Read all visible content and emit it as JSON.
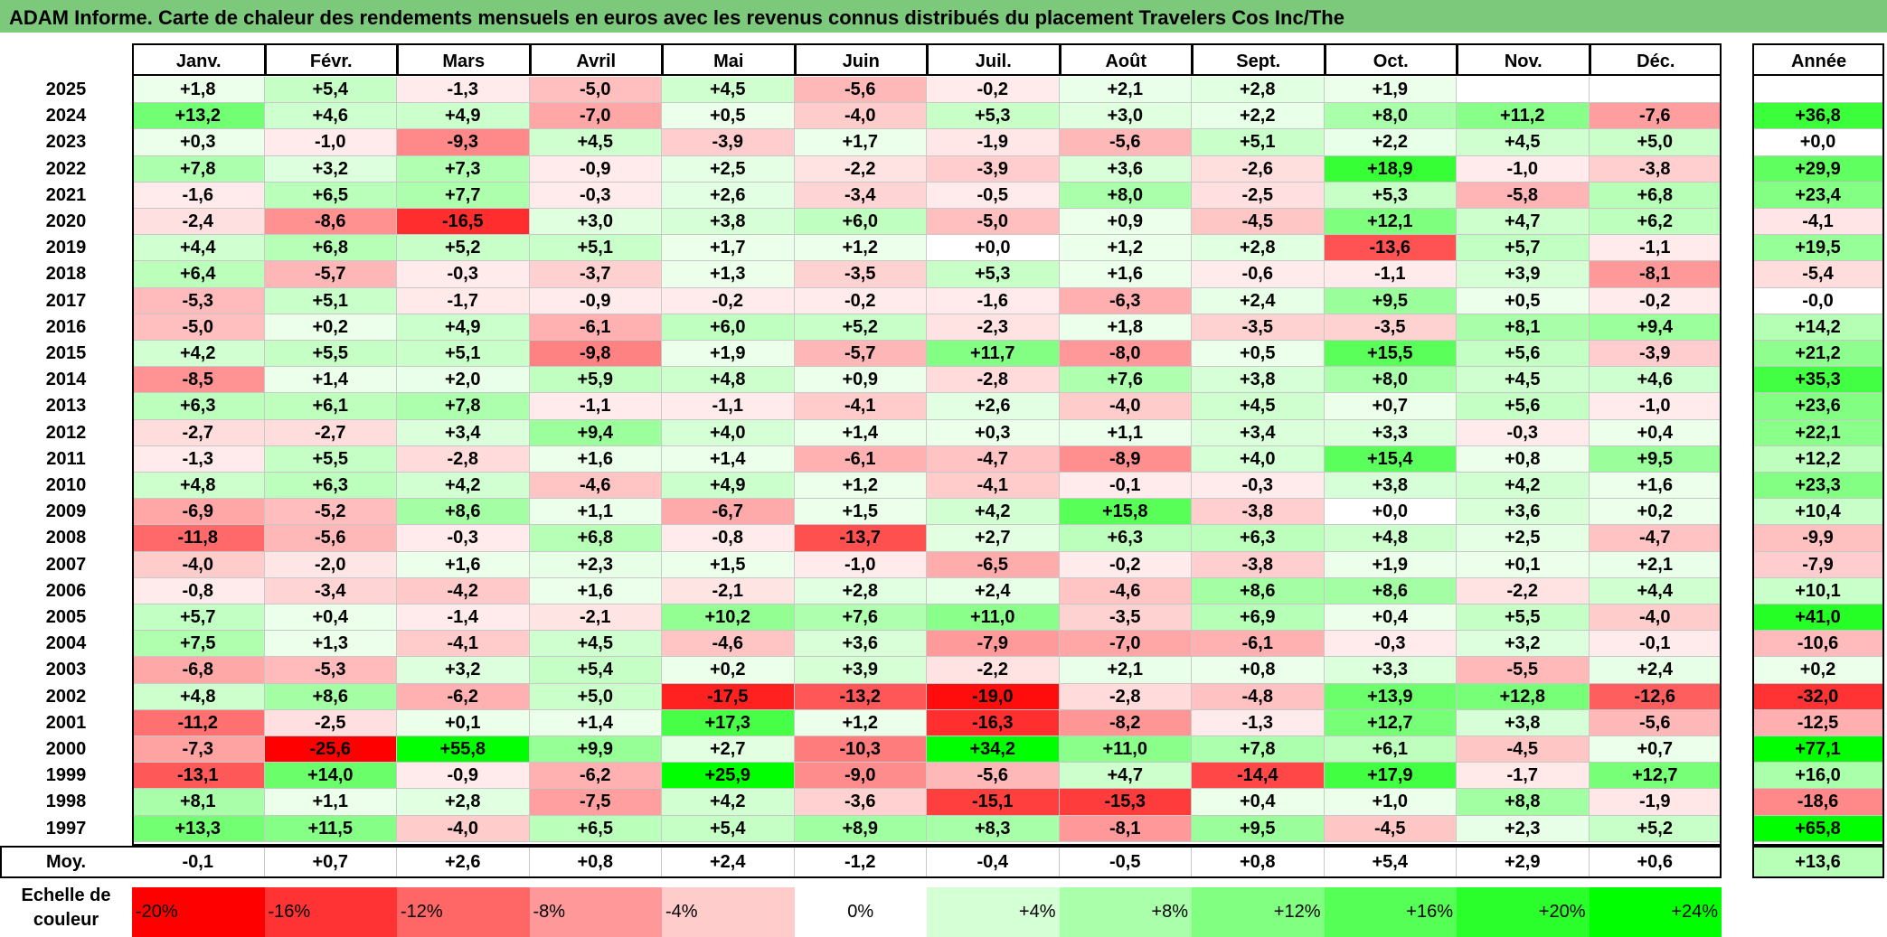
{
  "title": "ADAM Informe. Carte de chaleur des rendements mensuels en euros avec les revenus connus distribués du placement Travelers Cos Inc/The",
  "chart_data": {
    "type": "heatmap",
    "columns": [
      "Janv.",
      "Févr.",
      "Mars",
      "Avril",
      "Mai",
      "Juin",
      "Juil.",
      "Août",
      "Sept.",
      "Oct.",
      "Nov.",
      "Déc."
    ],
    "annual_header": "Année",
    "rows": [
      {
        "year": "2025",
        "values": [
          "+1,8",
          "+5,4",
          "-1,3",
          "-5,0",
          "+4,5",
          "-5,6",
          "-0,2",
          "+2,1",
          "+2,8",
          "+1,9",
          "",
          ""
        ],
        "annual": ""
      },
      {
        "year": "2024",
        "values": [
          "+13,2",
          "+4,6",
          "+4,9",
          "-7,0",
          "+0,5",
          "-4,0",
          "+5,3",
          "+3,0",
          "+2,2",
          "+8,0",
          "+11,2",
          "-7,6"
        ],
        "annual": "+36,8"
      },
      {
        "year": "2023",
        "values": [
          "+0,3",
          "-1,0",
          "-9,3",
          "+4,5",
          "-3,9",
          "+1,7",
          "-1,9",
          "-5,6",
          "+5,1",
          "+2,2",
          "+4,5",
          "+5,0"
        ],
        "annual": "+0,0"
      },
      {
        "year": "2022",
        "values": [
          "+7,8",
          "+3,2",
          "+7,3",
          "-0,9",
          "+2,5",
          "-2,2",
          "-3,9",
          "+3,6",
          "-2,6",
          "+18,9",
          "-1,0",
          "-3,8"
        ],
        "annual": "+29,9"
      },
      {
        "year": "2021",
        "values": [
          "-1,6",
          "+6,5",
          "+7,7",
          "-0,3",
          "+2,6",
          "-3,4",
          "-0,5",
          "+8,0",
          "-2,5",
          "+5,3",
          "-5,8",
          "+6,8"
        ],
        "annual": "+23,4"
      },
      {
        "year": "2020",
        "values": [
          "-2,4",
          "-8,6",
          "-16,5",
          "+3,0",
          "+3,8",
          "+6,0",
          "-5,0",
          "+0,9",
          "-4,5",
          "+12,1",
          "+4,7",
          "+6,2"
        ],
        "annual": "-4,1"
      },
      {
        "year": "2019",
        "values": [
          "+4,4",
          "+6,8",
          "+5,2",
          "+5,1",
          "+1,7",
          "+1,2",
          "+0,0",
          "+1,2",
          "+2,8",
          "-13,6",
          "+5,7",
          "-1,1"
        ],
        "annual": "+19,5"
      },
      {
        "year": "2018",
        "values": [
          "+6,4",
          "-5,7",
          "-0,3",
          "-3,7",
          "+1,3",
          "-3,5",
          "+5,3",
          "+1,6",
          "-0,6",
          "-1,1",
          "+3,9",
          "-8,1"
        ],
        "annual": "-5,4"
      },
      {
        "year": "2017",
        "values": [
          "-5,3",
          "+5,1",
          "-1,7",
          "-0,9",
          "-0,2",
          "-0,2",
          "-1,6",
          "-6,3",
          "+2,4",
          "+9,5",
          "+0,5",
          "-0,2"
        ],
        "annual": "-0,0"
      },
      {
        "year": "2016",
        "values": [
          "-5,0",
          "+0,2",
          "+4,9",
          "-6,1",
          "+6,0",
          "+5,2",
          "-2,3",
          "+1,8",
          "-3,5",
          "-3,5",
          "+8,1",
          "+9,4"
        ],
        "annual": "+14,2"
      },
      {
        "year": "2015",
        "values": [
          "+4,2",
          "+5,5",
          "+5,1",
          "-9,8",
          "+1,9",
          "-5,7",
          "+11,7",
          "-8,0",
          "+0,5",
          "+15,5",
          "+5,6",
          "-3,9"
        ],
        "annual": "+21,2"
      },
      {
        "year": "2014",
        "values": [
          "-8,5",
          "+1,4",
          "+2,0",
          "+5,9",
          "+4,8",
          "+0,9",
          "-2,8",
          "+7,6",
          "+3,8",
          "+8,0",
          "+4,5",
          "+4,6"
        ],
        "annual": "+35,3"
      },
      {
        "year": "2013",
        "values": [
          "+6,3",
          "+6,1",
          "+7,8",
          "-1,1",
          "-1,1",
          "-4,1",
          "+2,6",
          "-4,0",
          "+4,5",
          "+0,7",
          "+5,6",
          "-1,0"
        ],
        "annual": "+23,6"
      },
      {
        "year": "2012",
        "values": [
          "-2,7",
          "-2,7",
          "+3,4",
          "+9,4",
          "+4,0",
          "+1,4",
          "+0,3",
          "+1,1",
          "+3,4",
          "+3,3",
          "-0,3",
          "+0,4"
        ],
        "annual": "+22,1"
      },
      {
        "year": "2011",
        "values": [
          "-1,3",
          "+5,5",
          "-2,8",
          "+1,6",
          "+1,4",
          "-6,1",
          "-4,7",
          "-8,9",
          "+4,0",
          "+15,4",
          "+0,8",
          "+9,5"
        ],
        "annual": "+12,2"
      },
      {
        "year": "2010",
        "values": [
          "+4,8",
          "+6,3",
          "+4,2",
          "-4,6",
          "+4,9",
          "+1,2",
          "-4,1",
          "-0,1",
          "-0,3",
          "+3,8",
          "+4,2",
          "+1,6"
        ],
        "annual": "+23,3"
      },
      {
        "year": "2009",
        "values": [
          "-6,9",
          "-5,2",
          "+8,6",
          "+1,1",
          "-6,7",
          "+1,5",
          "+4,2",
          "+15,8",
          "-3,8",
          "+0,0",
          "+3,6",
          "+0,2"
        ],
        "annual": "+10,4"
      },
      {
        "year": "2008",
        "values": [
          "-11,8",
          "-5,6",
          "-0,3",
          "+6,8",
          "-0,8",
          "-13,7",
          "+2,7",
          "+6,3",
          "+6,3",
          "+4,8",
          "+2,5",
          "-4,7"
        ],
        "annual": "-9,9"
      },
      {
        "year": "2007",
        "values": [
          "-4,0",
          "-2,0",
          "+1,6",
          "+2,3",
          "+1,5",
          "-1,0",
          "-6,5",
          "-0,2",
          "-3,8",
          "+1,9",
          "+0,1",
          "+2,1"
        ],
        "annual": "-7,9"
      },
      {
        "year": "2006",
        "values": [
          "-0,8",
          "-3,4",
          "-4,2",
          "+1,6",
          "-2,1",
          "+2,8",
          "+2,4",
          "-4,6",
          "+8,6",
          "+8,6",
          "-2,2",
          "+4,4"
        ],
        "annual": "+10,1"
      },
      {
        "year": "2005",
        "values": [
          "+5,7",
          "+0,4",
          "-1,4",
          "-2,1",
          "+10,2",
          "+7,6",
          "+11,0",
          "-3,5",
          "+6,9",
          "+0,4",
          "+5,5",
          "-4,0"
        ],
        "annual": "+41,0"
      },
      {
        "year": "2004",
        "values": [
          "+7,5",
          "+1,3",
          "-4,1",
          "+4,5",
          "-4,6",
          "+3,6",
          "-7,9",
          "-7,0",
          "-6,1",
          "-0,3",
          "+3,2",
          "-0,1"
        ],
        "annual": "-10,6"
      },
      {
        "year": "2003",
        "values": [
          "-6,8",
          "-5,3",
          "+3,2",
          "+5,4",
          "+0,2",
          "+3,9",
          "-2,2",
          "+2,1",
          "+0,8",
          "+3,3",
          "-5,5",
          "+2,4"
        ],
        "annual": "+0,2"
      },
      {
        "year": "2002",
        "values": [
          "+4,8",
          "+8,6",
          "-6,2",
          "+5,0",
          "-17,5",
          "-13,2",
          "-19,0",
          "-2,8",
          "-4,8",
          "+13,9",
          "+12,8",
          "-12,6"
        ],
        "annual": "-32,0"
      },
      {
        "year": "2001",
        "values": [
          "-11,2",
          "-2,5",
          "+0,1",
          "+1,4",
          "+17,3",
          "+1,2",
          "-16,3",
          "-8,2",
          "-1,3",
          "+12,7",
          "+3,8",
          "-5,6"
        ],
        "annual": "-12,5"
      },
      {
        "year": "2000",
        "values": [
          "-7,3",
          "-25,6",
          "+55,8",
          "+9,9",
          "+2,7",
          "-10,3",
          "+34,2",
          "+11,0",
          "+7,8",
          "+6,1",
          "-4,5",
          "+0,7"
        ],
        "annual": "+77,1"
      },
      {
        "year": "1999",
        "values": [
          "-13,1",
          "+14,0",
          "-0,9",
          "-6,2",
          "+25,9",
          "-9,0",
          "-5,6",
          "+4,7",
          "-14,4",
          "+17,9",
          "-1,7",
          "+12,7"
        ],
        "annual": "+16,0"
      },
      {
        "year": "1998",
        "values": [
          "+8,1",
          "+1,1",
          "+2,8",
          "-7,5",
          "+4,2",
          "-3,6",
          "-15,1",
          "-15,3",
          "+0,4",
          "+1,0",
          "+8,8",
          "-1,9"
        ],
        "annual": "-18,6"
      },
      {
        "year": "1997",
        "values": [
          "+13,3",
          "+11,5",
          "-4,0",
          "+6,5",
          "+5,4",
          "+8,9",
          "+8,3",
          "-8,1",
          "+9,5",
          "-4,5",
          "+2,3",
          "+5,2"
        ],
        "annual": "+65,8"
      }
    ],
    "average_label": "Moy.",
    "average_values": [
      "-0,1",
      "+0,7",
      "+2,6",
      "+0,8",
      "+2,4",
      "-1,2",
      "-0,4",
      "-0,5",
      "+0,8",
      "+5,4",
      "+2,9",
      "+0,6"
    ],
    "average_annual": "+13,6",
    "legend": {
      "label": "Echelle de couleur",
      "steps": [
        "-20%",
        "-16%",
        "-12%",
        "-8%",
        "-4%",
        "0%",
        "+4%",
        "+8%",
        "+12%",
        "+16%",
        "+20%",
        "+24%"
      ]
    },
    "color_scale": {
      "negative": "#ff0000",
      "neutral": "#ffffff",
      "positive": "#00ff00",
      "min": -20,
      "max": 24
    }
  }
}
